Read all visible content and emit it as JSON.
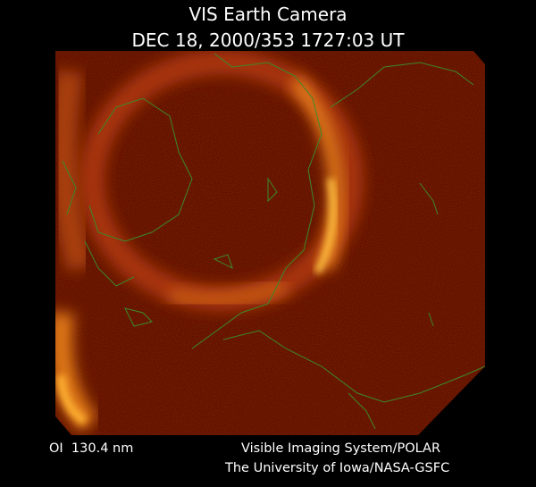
{
  "header": {
    "title": "VIS Earth Camera",
    "subtitle": "DEC 18, 2000/353 1727:03 UT"
  },
  "footer": {
    "wavelength": "OI  130.4 nm",
    "instrument": "Visible Imaging System/POLAR",
    "institution": "The University of Iowa/NASA-GSFC"
  }
}
